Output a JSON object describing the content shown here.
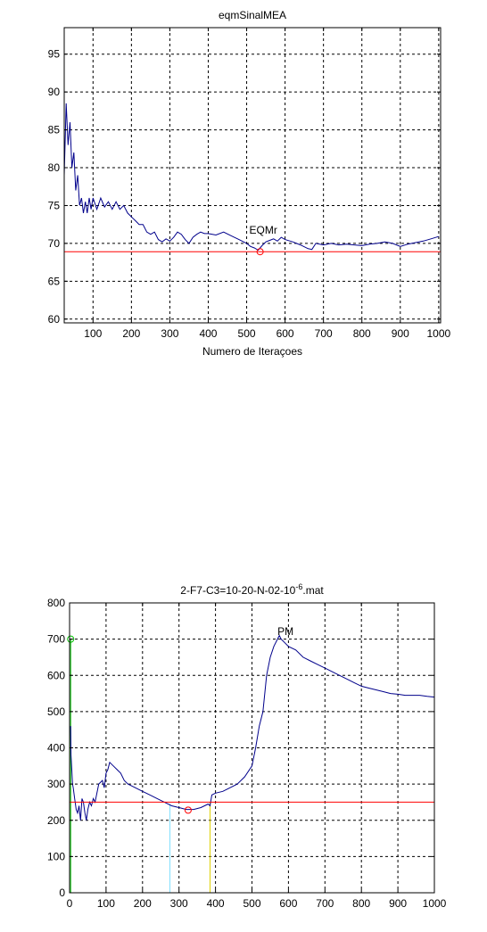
{
  "chart_data": [
    {
      "type": "line",
      "title": "eqmSinalMEA",
      "xlabel": "Numero de Iteraçoes",
      "ylabel": "",
      "xlim": [
        25,
        1005
      ],
      "ylim": [
        59.5,
        98.5
      ],
      "xticks": [
        100,
        200,
        300,
        400,
        500,
        600,
        700,
        800,
        900,
        1000
      ],
      "yticks": [
        60,
        65,
        70,
        75,
        80,
        85,
        90,
        95
      ],
      "grid": true,
      "series": [
        {
          "color": "#00008b",
          "x": [
            25,
            30,
            35,
            40,
            45,
            50,
            55,
            60,
            65,
            70,
            75,
            80,
            85,
            90,
            95,
            100,
            110,
            120,
            130,
            140,
            150,
            160,
            170,
            180,
            190,
            200,
            210,
            220,
            230,
            240,
            250,
            260,
            270,
            280,
            290,
            300,
            310,
            320,
            330,
            340,
            350,
            360,
            370,
            380,
            390,
            400,
            420,
            440,
            460,
            480,
            500,
            510,
            520,
            530,
            540,
            550,
            560,
            570,
            580,
            590,
            600,
            620,
            640,
            660,
            670,
            680,
            700,
            720,
            740,
            760,
            780,
            800,
            820,
            840,
            860,
            880,
            900,
            920,
            940,
            960,
            980,
            1000
          ],
          "values": [
            79,
            88.5,
            83,
            86,
            80,
            82,
            77,
            79,
            75,
            76,
            74,
            75.5,
            74,
            76,
            74.5,
            76,
            74.5,
            76,
            74.8,
            75.5,
            74.5,
            75.5,
            74.5,
            75,
            74,
            73.5,
            73,
            72.5,
            72.5,
            71.5,
            71.2,
            71.5,
            70.5,
            70.2,
            70.6,
            70.3,
            70.8,
            71.5,
            71.2,
            70.5,
            70,
            70.8,
            71.2,
            71.5,
            71.3,
            71.3,
            71.1,
            71.5,
            71,
            70.5,
            70,
            69.6,
            69.4,
            69.1,
            69.7,
            70.2,
            70.4,
            70.6,
            70.3,
            70.8,
            70.5,
            70.2,
            69.8,
            69.3,
            69.2,
            70,
            69.8,
            70,
            69.8,
            69.9,
            69.8,
            69.7,
            69.9,
            70,
            70.2,
            70,
            69.6,
            69.9,
            70.1,
            70.3,
            70.6,
            70.9
          ]
        },
        {
          "color": "#ff0000",
          "x": [
            25,
            1005
          ],
          "values": [
            68.9,
            68.9
          ]
        }
      ],
      "markers": [
        {
          "x": 535,
          "y": 68.9,
          "color": "#ff0000"
        }
      ],
      "annotations": [
        {
          "text": "EQMr",
          "x": 507,
          "y": 71.3
        }
      ]
    },
    {
      "type": "line",
      "title_main": "2-F7-C3=10-20-N-02-10",
      "title_sup": "-6",
      "title_tail": ".mat",
      "xlabel": "",
      "ylabel": "",
      "xlim": [
        0,
        1000
      ],
      "ylim": [
        0,
        800
      ],
      "xticks": [
        0,
        100,
        200,
        300,
        400,
        500,
        600,
        700,
        800,
        900,
        1000
      ],
      "yticks": [
        0,
        100,
        200,
        300,
        400,
        500,
        600,
        700,
        800
      ],
      "grid": true,
      "series": [
        {
          "color": "#00008b",
          "x": [
            3,
            4,
            6,
            8,
            10,
            14,
            18,
            22,
            26,
            30,
            34,
            38,
            42,
            46,
            50,
            55,
            60,
            65,
            70,
            80,
            90,
            95,
            100,
            105,
            110,
            120,
            130,
            140,
            150,
            160,
            180,
            200,
            220,
            240,
            260,
            280,
            300,
            320,
            340,
            360,
            370,
            380,
            385,
            390,
            400,
            420,
            440,
            460,
            480,
            500,
            510,
            520,
            530,
            540,
            550,
            560,
            570,
            575,
            580,
            590,
            600,
            620,
            640,
            660,
            680,
            700,
            720,
            740,
            760,
            780,
            800,
            820,
            840,
            860,
            880,
            900,
            920,
            940,
            960,
            980,
            1000
          ],
          "values": [
            460,
            380,
            340,
            300,
            290,
            260,
            230,
            220,
            240,
            200,
            260,
            250,
            220,
            200,
            230,
            250,
            240,
            260,
            250,
            300,
            310,
            290,
            330,
            340,
            360,
            350,
            340,
            330,
            310,
            300,
            290,
            280,
            270,
            260,
            250,
            240,
            235,
            230,
            230,
            235,
            240,
            245,
            240,
            270,
            275,
            280,
            290,
            300,
            320,
            350,
            400,
            460,
            500,
            600,
            650,
            680,
            700,
            710,
            700,
            690,
            680,
            670,
            650,
            640,
            630,
            620,
            610,
            600,
            590,
            580,
            570,
            565,
            560,
            555,
            550,
            548,
            545,
            545,
            545,
            542,
            540
          ]
        },
        {
          "color": "#ff0000",
          "x": [
            0,
            1000
          ],
          "values": [
            250,
            250
          ]
        }
      ],
      "verticals": [
        {
          "x": 3,
          "y0": 0,
          "y1": 700,
          "color": "#00c000"
        },
        {
          "x": 275,
          "y0": 0,
          "y1": 245,
          "color": "#80e0ff"
        },
        {
          "x": 385,
          "y0": 0,
          "y1": 250,
          "color": "#e0d000"
        }
      ],
      "markers": [
        {
          "x": 3,
          "y": 700,
          "color": "#00c000"
        },
        {
          "x": 325,
          "y": 228,
          "color": "#ff0000"
        }
      ],
      "annotations": [
        {
          "text": "PM",
          "x": 570,
          "y": 712
        }
      ]
    }
  ]
}
